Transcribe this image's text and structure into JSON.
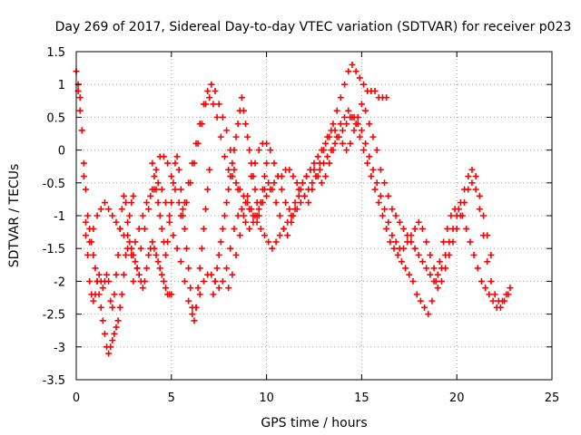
{
  "chart_data": {
    "type": "scatter",
    "title": "Day 269 of 2017, Sidereal Day-to-day VTEC variation (SDTVAR) for receiver p023",
    "xlabel": "GPS time / hours",
    "ylabel": "SDTVAR / TECUs",
    "xlim": [
      0,
      25
    ],
    "ylim": [
      -3.5,
      1.5
    ],
    "xticks": [
      0,
      5,
      10,
      15,
      20,
      25
    ],
    "yticks": [
      -3.5,
      -3,
      -2.5,
      -2,
      -1.5,
      -1,
      -0.5,
      0,
      0.5,
      1,
      1.5
    ],
    "xtick_labels": [
      "0",
      "5",
      "10",
      "15",
      "20",
      "25"
    ],
    "ytick_labels": [
      "-3.5",
      "-3",
      "-2.5",
      "-2",
      "-1.5",
      "-1",
      "-0.5",
      "0",
      "0.5",
      "1",
      "1.5"
    ],
    "grid": true,
    "marker": "+",
    "marker_color": "#ff0000",
    "series": [
      {
        "name": "s1",
        "x": [
          0.0,
          0.1,
          0.2,
          0.3,
          0.4,
          0.5,
          0.6,
          0.7,
          0.8,
          0.9,
          1.0,
          1.1,
          1.2,
          1.3,
          1.4,
          1.5,
          1.6,
          1.7,
          1.8,
          1.9,
          2.0,
          2.1,
          2.2,
          2.3,
          2.4,
          2.5,
          2.6,
          2.7,
          2.8,
          2.9,
          3.0,
          3.1,
          3.2,
          3.3,
          3.4,
          3.5,
          3.6,
          3.7,
          3.8,
          3.9,
          4.0,
          4.1,
          4.2,
          4.3,
          4.4,
          4.5,
          4.6,
          4.7,
          4.8,
          4.9,
          5.0
        ],
        "y": [
          1.2,
          1.0,
          0.8,
          0.3,
          -0.4,
          -1.1,
          -1.6,
          -2.0,
          -2.2,
          -2.3,
          -2.2,
          -2.0,
          -1.9,
          -2.0,
          -2.1,
          -2.0,
          -1.9,
          -2.0,
          -2.3,
          -2.4,
          -2.2,
          -1.9,
          -1.6,
          -1.2,
          -0.9,
          -0.7,
          -0.8,
          -1.1,
          -1.4,
          -1.5,
          -1.6,
          -1.7,
          -1.8,
          -1.9,
          -2.0,
          -2.1,
          -2.0,
          -1.8,
          -1.6,
          -1.5,
          -1.4,
          -1.5,
          -1.6,
          -1.7,
          -1.8,
          -1.9,
          -2.0,
          -2.1,
          -2.2,
          -2.2,
          -2.2
        ]
      },
      {
        "name": "s2",
        "x": [
          0.1,
          0.2,
          0.3,
          0.4,
          0.5,
          0.6,
          0.7,
          0.8,
          0.9,
          1.0,
          1.1,
          1.2,
          1.3,
          1.4,
          1.5,
          1.6,
          1.7,
          1.8,
          1.9,
          2.0,
          2.1,
          2.2,
          2.3,
          2.4,
          2.5,
          2.6,
          2.7,
          2.8,
          2.9,
          3.0
        ],
        "y": [
          0.9,
          0.6,
          0.3,
          -0.2,
          -0.6,
          -1.0,
          -1.2,
          -1.4,
          -1.6,
          -1.8,
          -2.0,
          -2.2,
          -2.4,
          -2.6,
          -2.8,
          -3.0,
          -3.1,
          -3.0,
          -2.9,
          -2.8,
          -2.7,
          -2.6,
          -2.4,
          -2.2,
          -1.9,
          -1.6,
          -1.3,
          -1.0,
          -0.8,
          -0.7
        ]
      },
      {
        "name": "s3",
        "x": [
          0.5,
          0.7,
          0.9,
          1.1,
          1.3,
          1.5,
          1.7,
          1.9,
          2.1,
          2.3,
          2.5,
          2.7,
          2.9,
          3.1,
          3.3,
          3.5,
          3.7,
          3.9,
          4.1,
          4.3,
          4.5,
          4.7,
          4.9,
          5.1,
          5.3,
          5.5,
          5.7,
          5.9,
          6.1,
          6.3,
          6.5,
          6.7,
          6.9,
          7.1,
          7.3,
          7.5,
          7.7,
          7.9,
          8.1,
          8.3,
          8.5,
          8.7,
          8.9,
          9.1,
          9.3,
          9.5,
          9.7,
          9.9,
          10.1,
          10.3,
          10.5,
          10.7,
          10.9,
          11.1,
          11.3,
          11.5,
          11.7,
          11.9,
          12.1,
          12.3,
          12.5,
          12.7,
          12.9,
          13.1,
          13.3,
          13.5,
          13.7,
          13.9,
          14.1,
          14.3,
          14.5,
          14.7,
          14.9,
          15.1,
          15.3,
          15.5,
          15.7,
          15.9,
          16.1,
          16.3
        ],
        "y": [
          -1.3,
          -1.4,
          -1.2,
          -1.0,
          -0.9,
          -0.8,
          -0.9,
          -1.0,
          -1.1,
          -1.2,
          -1.3,
          -1.5,
          -1.6,
          -1.4,
          -1.2,
          -1.0,
          -0.8,
          -0.7,
          -0.6,
          -0.5,
          -0.6,
          -0.8,
          -1.0,
          -1.3,
          -1.5,
          -1.7,
          -2.0,
          -2.3,
          -2.5,
          -2.4,
          -2.2,
          -2.0,
          -1.9,
          -1.9,
          -2.0,
          -2.1,
          -2.0,
          -1.8,
          -1.5,
          -1.2,
          -1.0,
          -0.9,
          -0.8,
          -0.9,
          -1.0,
          -1.1,
          -1.2,
          -1.3,
          -1.4,
          -1.5,
          -1.4,
          -1.3,
          -1.2,
          -1.1,
          -1.0,
          -0.8,
          -0.6,
          -0.5,
          -0.4,
          -0.3,
          -0.2,
          -0.1,
          0.0,
          0.1,
          0.2,
          0.4,
          0.6,
          0.8,
          1.0,
          1.2,
          1.3,
          1.2,
          1.1,
          1.0,
          0.9,
          0.9,
          0.9,
          0.8,
          0.8,
          0.8
        ]
      },
      {
        "name": "s4",
        "x": [
          3.0,
          3.2,
          3.4,
          3.6,
          3.8,
          4.0,
          4.2,
          4.4,
          4.6,
          4.8,
          5.0,
          5.2,
          5.4,
          5.6,
          5.8,
          6.0,
          6.2,
          6.4,
          6.6,
          6.8,
          7.0,
          7.2,
          7.4,
          7.6,
          7.8,
          8.0,
          8.2,
          8.4,
          8.6,
          8.8,
          9.0,
          9.2,
          9.4,
          9.6,
          9.8,
          10.0,
          10.2,
          10.4,
          10.6,
          10.8,
          11.0,
          11.2,
          11.4,
          11.6,
          11.8,
          12.0,
          12.2,
          12.4,
          12.6,
          12.8,
          13.0,
          13.2,
          13.4,
          13.6,
          13.8,
          14.0,
          14.2,
          14.4,
          14.6,
          14.8,
          15.0,
          15.2,
          15.4,
          15.6,
          15.8,
          16.0,
          16.2,
          16.4,
          16.6,
          16.8,
          17.0,
          17.2,
          17.4,
          17.6,
          17.8,
          18.0,
          18.2,
          18.4,
          18.6,
          18.8,
          19.0,
          19.2,
          19.4,
          19.6,
          19.8,
          20.0,
          20.2,
          20.4,
          20.6,
          20.8,
          21.0,
          21.2,
          21.4,
          21.6,
          21.8,
          22.0,
          22.2,
          22.4,
          22.6,
          22.8
        ],
        "y": [
          -2.0,
          -1.8,
          -1.5,
          -1.2,
          -0.9,
          -0.6,
          -0.3,
          -0.1,
          -0.1,
          -0.2,
          -0.4,
          -0.6,
          -0.8,
          -1.0,
          -0.8,
          -0.5,
          -0.2,
          0.1,
          0.4,
          0.7,
          0.8,
          0.7,
          0.5,
          0.2,
          -0.1,
          -0.3,
          -0.4,
          -0.5,
          -0.6,
          -0.7,
          -0.8,
          -0.9,
          -1.0,
          -0.9,
          -0.8,
          -0.7,
          -0.6,
          -0.5,
          -0.4,
          -0.4,
          -0.3,
          -0.3,
          -0.4,
          -0.5,
          -0.6,
          -0.7,
          -0.8,
          -0.6,
          -0.4,
          -0.2,
          0.0,
          0.2,
          0.3,
          0.3,
          0.2,
          0.1,
          0.0,
          0.1,
          0.3,
          0.5,
          0.7,
          0.6,
          0.4,
          0.2,
          0.0,
          -0.3,
          -0.5,
          -0.7,
          -0.9,
          -1.0,
          -1.1,
          -1.2,
          -1.3,
          -1.4,
          -1.5,
          -1.6,
          -1.7,
          -1.8,
          -1.9,
          -2.0,
          -2.1,
          -2.0,
          -1.8,
          -1.6,
          -1.4,
          -1.2,
          -1.0,
          -0.8,
          -0.6,
          -0.5,
          -0.6,
          -0.9,
          -1.3,
          -1.7,
          -2.0,
          -2.2,
          -2.3,
          -2.3,
          -2.2,
          -2.1
        ]
      },
      {
        "name": "s5",
        "x": [
          5.5,
          5.7,
          5.9,
          6.1,
          6.3,
          6.5,
          6.7,
          6.9,
          7.1,
          7.3,
          7.5,
          7.7,
          7.9,
          8.1,
          8.3,
          8.5,
          8.7,
          8.9,
          9.1,
          9.3,
          9.5,
          9.7,
          9.9,
          10.1,
          10.3,
          10.5,
          10.7,
          10.9,
          11.1,
          11.3,
          11.5,
          11.7,
          11.9,
          12.1,
          12.3,
          12.5,
          12.7,
          12.9,
          13.1,
          13.3,
          13.5,
          13.7,
          13.9,
          14.1,
          14.3,
          14.5,
          14.7,
          14.9,
          15.1,
          15.3,
          15.5,
          15.7,
          15.9,
          16.1,
          16.3,
          16.5,
          16.7,
          16.9,
          17.1,
          17.3,
          17.5,
          17.7,
          17.9,
          18.1,
          18.3,
          18.5,
          18.7,
          18.9,
          19.1,
          19.3,
          19.5,
          19.7,
          19.9,
          20.1,
          20.3,
          20.5,
          20.7,
          20.9,
          21.1,
          21.3,
          21.5,
          21.7,
          21.9,
          22.1,
          22.3,
          22.5,
          22.7
        ],
        "y": [
          -1.0,
          -0.8,
          -0.5,
          -0.2,
          0.1,
          0.4,
          0.7,
          0.9,
          1.0,
          0.9,
          0.7,
          0.5,
          0.3,
          0.0,
          -0.3,
          -0.6,
          -0.9,
          -1.1,
          -1.2,
          -1.1,
          -1.0,
          -0.8,
          -0.6,
          -0.5,
          -0.6,
          -0.8,
          -1.0,
          -1.2,
          -1.3,
          -1.1,
          -0.9,
          -0.7,
          -0.5,
          -0.4,
          -0.3,
          -0.3,
          -0.4,
          -0.5,
          -0.4,
          -0.2,
          0.0,
          0.2,
          0.4,
          0.5,
          0.6,
          0.5,
          0.4,
          0.2,
          0.0,
          -0.2,
          -0.4,
          -0.6,
          -0.8,
          -1.0,
          -1.2,
          -1.4,
          -1.5,
          -1.6,
          -1.7,
          -1.8,
          -1.9,
          -2.0,
          -2.2,
          -2.3,
          -2.4,
          -2.5,
          -2.3,
          -2.0,
          -1.7,
          -1.4,
          -1.2,
          -1.0,
          -0.9,
          -0.9,
          -1.0,
          -1.2,
          -1.4,
          -1.6,
          -1.8,
          -2.0,
          -2.1,
          -2.2,
          -2.3,
          -2.4,
          -2.4,
          -2.3,
          -2.2
        ]
      },
      {
        "name": "s6",
        "x": [
          8.0,
          8.2,
          8.4,
          8.6,
          8.8,
          9.0,
          9.2,
          9.4,
          9.6,
          9.8,
          10.0,
          10.2,
          10.4,
          10.6,
          10.8,
          11.0,
          11.2,
          11.4,
          11.6,
          11.8,
          12.0,
          12.2,
          12.4,
          12.6,
          12.8,
          13.0,
          13.2,
          13.4,
          13.6,
          13.8,
          14.0,
          14.2,
          14.4,
          14.6,
          14.8,
          15.0,
          15.2,
          15.4,
          15.6,
          15.8,
          16.0,
          16.2,
          16.4,
          16.6,
          16.8,
          17.0,
          17.2,
          17.4,
          17.6,
          17.8,
          18.0,
          18.2,
          18.4,
          18.6,
          18.8,
          19.0,
          19.2,
          19.4,
          19.6,
          19.8,
          20.0,
          20.2,
          20.4,
          20.6,
          20.8,
          21.0,
          21.2,
          21.4,
          21.6,
          21.8
        ],
        "y": [
          -2.1,
          -1.9,
          -1.6,
          -1.3,
          -1.0,
          -0.7,
          -0.4,
          -0.2,
          0.0,
          0.1,
          0.1,
          0.0,
          -0.2,
          -0.4,
          -0.6,
          -0.8,
          -0.9,
          -1.0,
          -0.9,
          -0.8,
          -0.7,
          -0.6,
          -0.5,
          -0.4,
          -0.3,
          -0.2,
          -0.1,
          0.0,
          0.1,
          0.2,
          0.3,
          0.4,
          0.5,
          0.5,
          0.4,
          0.3,
          0.1,
          -0.1,
          -0.3,
          -0.5,
          -0.7,
          -0.9,
          -1.1,
          -1.3,
          -1.4,
          -1.5,
          -1.5,
          -1.4,
          -1.3,
          -1.2,
          -1.1,
          -1.2,
          -1.4,
          -1.6,
          -1.8,
          -1.9,
          -1.8,
          -1.6,
          -1.4,
          -1.2,
          -1.0,
          -0.8,
          -0.6,
          -0.4,
          -0.3,
          -0.4,
          -0.7,
          -1.0,
          -1.3,
          -1.6
        ]
      },
      {
        "name": "s7",
        "x": [
          4.0,
          4.1,
          4.2,
          4.3,
          4.4,
          4.5,
          4.6,
          4.7,
          4.8,
          4.9,
          5.0,
          5.1,
          5.2,
          5.3,
          5.4,
          5.5,
          5.6,
          5.7,
          5.8,
          5.9,
          6.0,
          6.1,
          6.2,
          6.3,
          6.4,
          6.5,
          6.6,
          6.7,
          6.8,
          6.9,
          7.0
        ],
        "y": [
          -0.2,
          -0.4,
          -0.6,
          -0.8,
          -1.0,
          -1.2,
          -1.4,
          -1.6,
          -1.4,
          -1.1,
          -0.8,
          -0.5,
          -0.2,
          -0.1,
          -0.3,
          -0.6,
          -0.9,
          -1.2,
          -1.5,
          -1.8,
          -2.1,
          -2.4,
          -2.6,
          -2.4,
          -2.1,
          -1.8,
          -1.5,
          -1.2,
          -0.9,
          -0.6,
          -0.3
        ]
      },
      {
        "name": "s8",
        "x": [
          7.2,
          7.3,
          7.4,
          7.5,
          7.6,
          7.7,
          7.8,
          7.9,
          8.0,
          8.1,
          8.2,
          8.3,
          8.4,
          8.5,
          8.6,
          8.7,
          8.8,
          8.9,
          9.0,
          9.1,
          9.2,
          9.3,
          9.4,
          9.5,
          9.6,
          9.7,
          9.8,
          9.9,
          10.0
        ],
        "y": [
          -2.2,
          -2.0,
          -1.8,
          -1.6,
          -1.4,
          -1.2,
          -1.0,
          -0.8,
          -0.6,
          -0.4,
          -0.2,
          0.0,
          0.2,
          0.4,
          0.6,
          0.8,
          0.6,
          0.4,
          0.2,
          0.0,
          -0.2,
          -0.4,
          -0.6,
          -0.8,
          -1.0,
          -0.8,
          -0.6,
          -0.4,
          -0.2
        ]
      }
    ]
  }
}
